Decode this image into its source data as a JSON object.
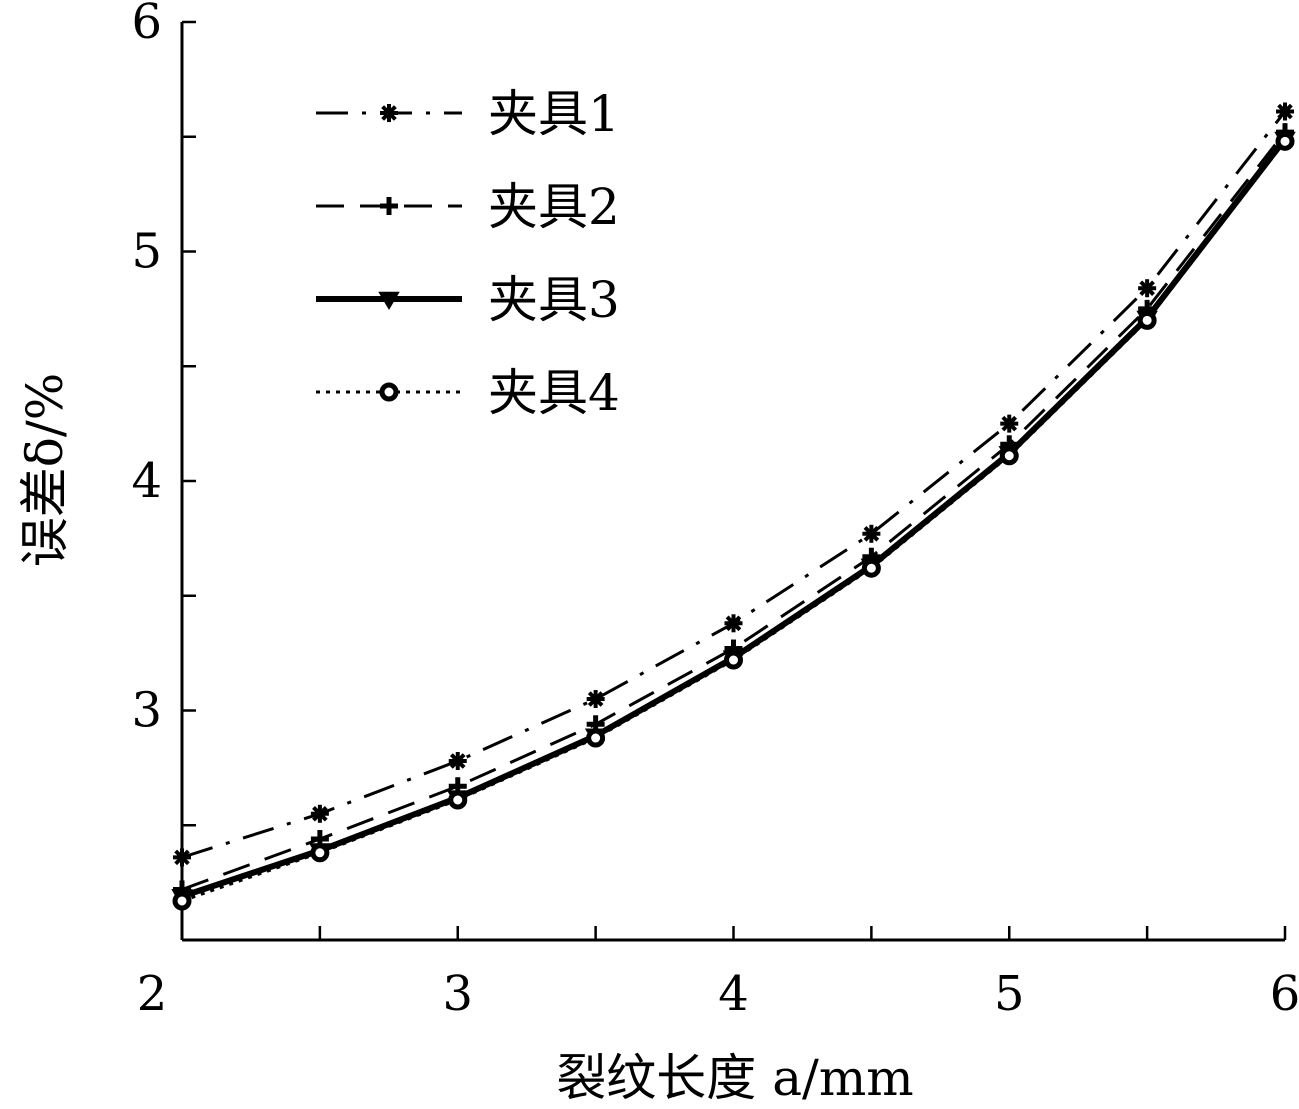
{
  "chart_data": {
    "type": "line",
    "xlabel": "裂纹长度 a/mm",
    "ylabel": "误差δ/%",
    "xlim": [
      2,
      6
    ],
    "ylim": [
      2,
      6
    ],
    "x_ticks": [
      2,
      3,
      4,
      5,
      6
    ],
    "y_ticks": [
      3,
      4,
      5,
      6
    ],
    "y_minor_ticks": [
      2.5,
      3.5,
      4.5,
      5.5
    ],
    "x_minor_ticks": [
      2.5,
      3.5,
      4.5,
      5.5
    ],
    "grid": false,
    "legend_position": "top-left",
    "x": [
      2,
      2.5,
      3,
      3.5,
      4,
      4.5,
      5,
      5.5,
      6
    ],
    "series": [
      {
        "name": "夹具1",
        "marker": "asterisk",
        "dash": "dash-dot",
        "values": [
          2.36,
          2.55,
          2.78,
          3.05,
          3.38,
          3.77,
          4.25,
          4.84,
          5.61
        ]
      },
      {
        "name": "夹具2",
        "marker": "plus",
        "dash": "dashed",
        "values": [
          2.22,
          2.44,
          2.67,
          2.94,
          3.27,
          3.67,
          4.16,
          4.75,
          5.52
        ]
      },
      {
        "name": "夹具3",
        "marker": "triangle-down",
        "dash": "solid",
        "values": [
          2.19,
          2.39,
          2.62,
          2.89,
          3.23,
          3.63,
          4.12,
          4.71,
          5.49
        ]
      },
      {
        "name": "夹具4",
        "marker": "circle",
        "dash": "dotted",
        "values": [
          2.17,
          2.38,
          2.61,
          2.88,
          3.22,
          3.62,
          4.11,
          4.7,
          5.48
        ]
      }
    ]
  }
}
